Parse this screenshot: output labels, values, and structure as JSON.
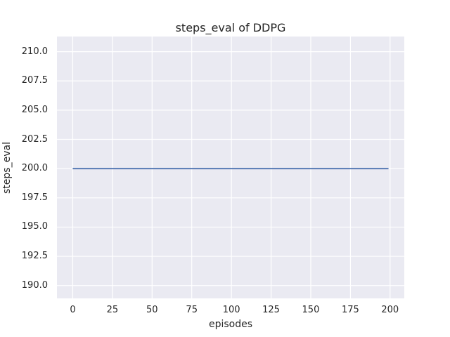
{
  "chart_data": {
    "type": "line",
    "title": "steps_eval of DDPG",
    "xlabel": "episodes",
    "ylabel": "steps_eval",
    "x_tick_values": [
      0,
      25,
      50,
      75,
      100,
      125,
      150,
      175,
      200
    ],
    "x_tick_labels": [
      "0",
      "25",
      "50",
      "75",
      "100",
      "125",
      "150",
      "175",
      "200"
    ],
    "y_tick_values": [
      190.0,
      192.5,
      195.0,
      197.5,
      200.0,
      202.5,
      205.0,
      207.5,
      210.0
    ],
    "y_tick_labels": [
      "190.0",
      "192.5",
      "195.0",
      "197.5",
      "200.0",
      "202.5",
      "205.0",
      "207.5",
      "210.0"
    ],
    "xlim": [
      -9.95,
      208.95
    ],
    "ylim": [
      188.9,
      211.3
    ],
    "grid": true,
    "legend": "none",
    "plot_background_color": "#eaeaf2",
    "grid_color": "#ffffff",
    "series": [
      {
        "name": "DDPG",
        "color": "#4c72b0",
        "x": [
          0,
          199
        ],
        "y": [
          200,
          200
        ]
      }
    ]
  }
}
